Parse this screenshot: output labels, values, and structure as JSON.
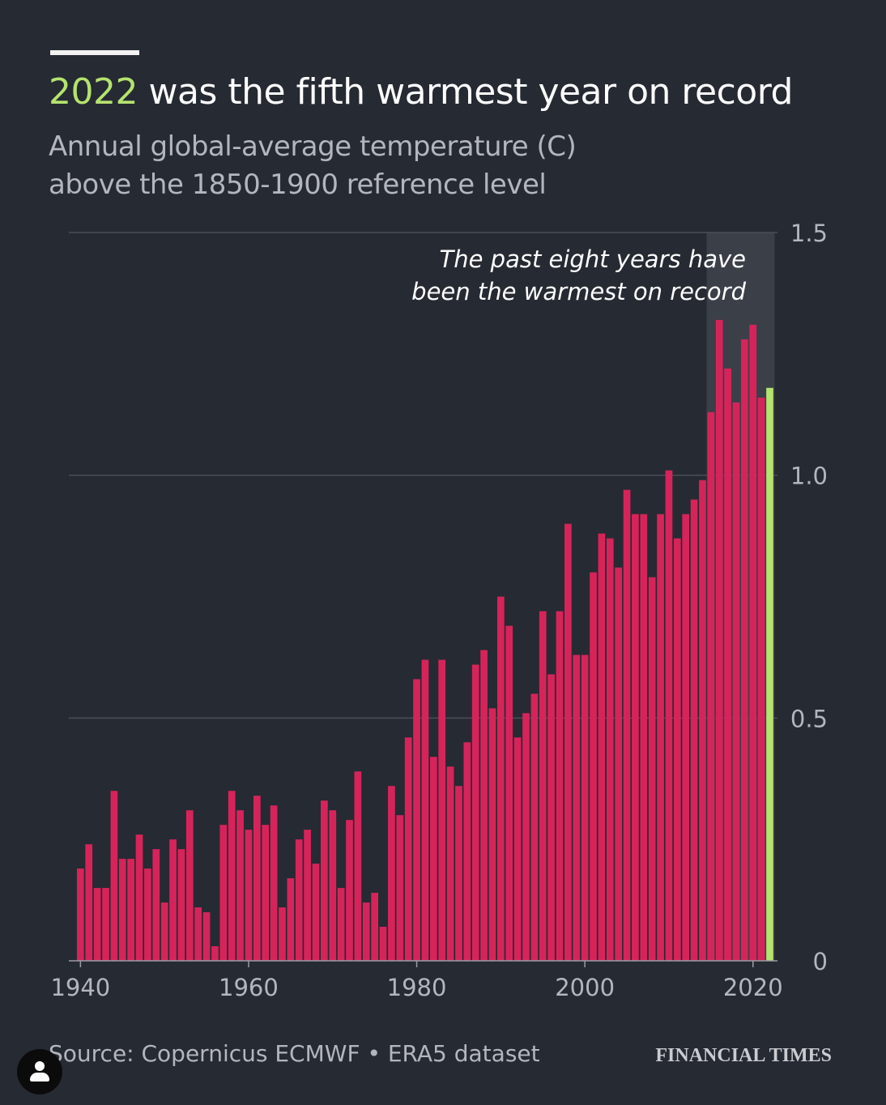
{
  "header": {
    "title_highlight": "2022",
    "title_rest": " was the fifth warmest year on record",
    "subtitle_line1": "Annual global-average temperature (C)",
    "subtitle_line2": "above the 1850-1900 reference level"
  },
  "footer": {
    "source": "Source: Copernicus ECMWF • ERA5 dataset",
    "brand": "FINANCIAL TIMES"
  },
  "colors": {
    "background": "#262a33",
    "bar": "#d6245a",
    "highlight_bar": "#b5e36f",
    "shaded_region": "#3b3f48",
    "gridline": "#4a4e57",
    "text_muted": "#b3b6bd"
  },
  "icons": {
    "avatar": "user-avatar-icon"
  },
  "chart_data": {
    "type": "bar",
    "xlabel": "",
    "ylabel": "",
    "ylim": [
      0,
      1.5
    ],
    "y_ticks": [
      {
        "value": 0,
        "label": "0"
      },
      {
        "value": 0.5,
        "label": "0.5"
      },
      {
        "value": 1.0,
        "label": "1.0"
      },
      {
        "value": 1.5,
        "label": "1.5"
      }
    ],
    "x_ticks": [
      {
        "value": 1940,
        "label": "1940"
      },
      {
        "value": 1960,
        "label": "1960"
      },
      {
        "value": 1980,
        "label": "1980"
      },
      {
        "value": 2000,
        "label": "2000"
      },
      {
        "value": 2020,
        "label": "2020"
      }
    ],
    "grid": true,
    "y_axis_side": "right",
    "highlight_year": 2022,
    "shaded_range": [
      2015,
      2022
    ],
    "annotation": {
      "line1": "The past eight years have",
      "line2": "been the warmest on record"
    },
    "x": [
      1940,
      1941,
      1942,
      1943,
      1944,
      1945,
      1946,
      1947,
      1948,
      1949,
      1950,
      1951,
      1952,
      1953,
      1954,
      1955,
      1956,
      1957,
      1958,
      1959,
      1960,
      1961,
      1962,
      1963,
      1964,
      1965,
      1966,
      1967,
      1968,
      1969,
      1970,
      1971,
      1972,
      1973,
      1974,
      1975,
      1976,
      1977,
      1978,
      1979,
      1980,
      1981,
      1982,
      1983,
      1984,
      1985,
      1986,
      1987,
      1988,
      1989,
      1990,
      1991,
      1992,
      1993,
      1994,
      1995,
      1996,
      1997,
      1998,
      1999,
      2000,
      2001,
      2002,
      2003,
      2004,
      2005,
      2006,
      2007,
      2008,
      2009,
      2010,
      2011,
      2012,
      2013,
      2014,
      2015,
      2016,
      2017,
      2018,
      2019,
      2020,
      2021,
      2022
    ],
    "values": [
      0.19,
      0.24,
      0.15,
      0.15,
      0.35,
      0.21,
      0.21,
      0.26,
      0.19,
      0.23,
      0.12,
      0.25,
      0.23,
      0.31,
      0.11,
      0.1,
      0.03,
      0.28,
      0.35,
      0.31,
      0.27,
      0.34,
      0.28,
      0.32,
      0.11,
      0.17,
      0.25,
      0.27,
      0.2,
      0.33,
      0.31,
      0.15,
      0.29,
      0.39,
      0.12,
      0.14,
      0.07,
      0.36,
      0.3,
      0.46,
      0.58,
      0.62,
      0.42,
      0.62,
      0.4,
      0.36,
      0.45,
      0.61,
      0.64,
      0.52,
      0.75,
      0.69,
      0.46,
      0.51,
      0.55,
      0.72,
      0.59,
      0.72,
      0.9,
      0.63,
      0.63,
      0.8,
      0.88,
      0.87,
      0.81,
      0.97,
      0.92,
      0.92,
      0.79,
      0.92,
      1.01,
      0.87,
      0.92,
      0.95,
      0.99,
      1.13,
      1.32,
      1.22,
      1.15,
      1.28,
      1.31,
      1.16,
      1.18
    ]
  }
}
